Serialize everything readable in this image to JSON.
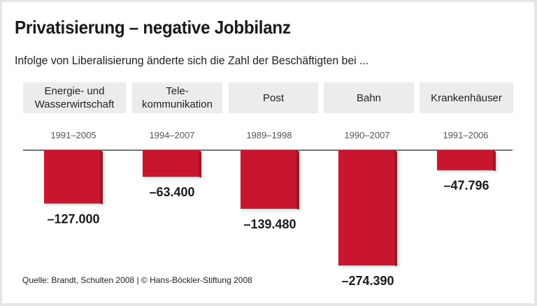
{
  "title": "Privatisierung – negative Jobbilanz",
  "subtitle": "Infolge von Liberalisierung änderte sich die Zahl der Beschäftigten bei ...",
  "source": "Quelle: Brandt, Schulten 2008 | © Hans-Böckler-Stiftung 2008",
  "colors": {
    "bar": "#c8192f",
    "bar_side": "#9e1424",
    "box": "#ececec",
    "axis": "#222222"
  },
  "chart_data": {
    "type": "bar",
    "title": "Privatisierung – negative Jobbilanz",
    "subtitle": "Infolge von Liberalisierung änderte sich die Zahl der Beschäftigten bei ...",
    "xlabel": "",
    "ylabel": "",
    "ylim": [
      -280000,
      0
    ],
    "grid": false,
    "categories": [
      "Energie- und\nWasserwirtschaft",
      "Tele-\nkommunikation",
      "Post",
      "Bahn",
      "Krankenhäuser"
    ],
    "periods": [
      "1991–2005",
      "1994–2007",
      "1989–1998",
      "1990–2007",
      "1991–2006"
    ],
    "values": [
      -127000,
      -63400,
      -139480,
      -274390,
      -47796
    ],
    "value_labels": [
      "–127.000",
      "–63.400",
      "–139.480",
      "–274.390",
      "–47.796"
    ]
  }
}
